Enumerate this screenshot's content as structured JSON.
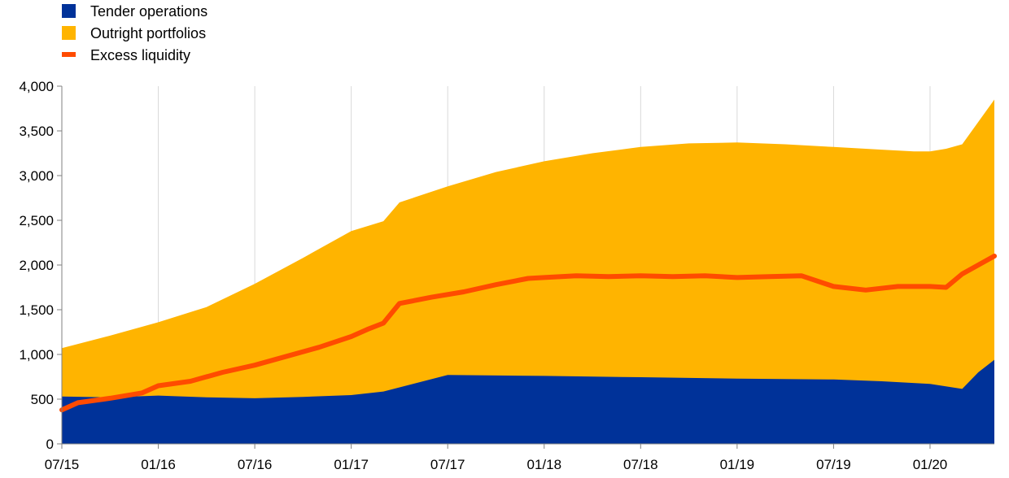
{
  "chart_data": {
    "type": "area",
    "title": "",
    "xlabel": "",
    "ylabel": "",
    "ylim": [
      0,
      4000
    ],
    "xlim": [
      "2015-07",
      "2020-05"
    ],
    "grid": {
      "vertical": true,
      "horizontal": false
    },
    "legend_position": "top-left",
    "y_ticks": [
      0,
      500,
      1000,
      1500,
      2000,
      2500,
      3000,
      3500,
      4000
    ],
    "y_tick_labels": [
      "0",
      "500",
      "1,000",
      "1,500",
      "2,000",
      "2,500",
      "3,000",
      "3,500",
      "4,000"
    ],
    "x_ticks": [
      "2015-07",
      "2016-01",
      "2016-07",
      "2017-01",
      "2017-07",
      "2018-01",
      "2018-07",
      "2019-01",
      "2019-07",
      "2020-01"
    ],
    "x_tick_labels": [
      "07/15",
      "01/16",
      "07/16",
      "01/17",
      "07/17",
      "01/18",
      "07/18",
      "01/19",
      "07/19",
      "01/20"
    ],
    "series": [
      {
        "name": "Tender operations",
        "kind": "stacked-area",
        "color": "#003299",
        "x": [
          "2015-07",
          "2015-10",
          "2016-01",
          "2016-04",
          "2016-07",
          "2016-10",
          "2017-01",
          "2017-03",
          "2017-07",
          "2018-01",
          "2018-07",
          "2019-01",
          "2019-07",
          "2019-10",
          "2020-01",
          "2020-03",
          "2020-04",
          "2020-05"
        ],
        "values": [
          530,
          520,
          540,
          520,
          510,
          525,
          545,
          585,
          770,
          760,
          745,
          730,
          720,
          700,
          670,
          615,
          800,
          940
        ]
      },
      {
        "name": "Outright portfolios",
        "kind": "stacked-area",
        "color": "#ffb400",
        "total_x": [
          "2015-07",
          "2015-10",
          "2016-01",
          "2016-04",
          "2016-07",
          "2016-10",
          "2017-01",
          "2017-03",
          "2017-04",
          "2017-07",
          "2017-10",
          "2018-01",
          "2018-04",
          "2018-07",
          "2018-10",
          "2019-01",
          "2019-04",
          "2019-07",
          "2019-10",
          "2019-12",
          "2020-01",
          "2020-02",
          "2020-03",
          "2020-04",
          "2020-05"
        ],
        "total_values": [
          1070,
          1210,
          1360,
          1530,
          1790,
          2080,
          2380,
          2490,
          2700,
          2880,
          3040,
          3160,
          3250,
          3320,
          3360,
          3370,
          3350,
          3320,
          3290,
          3270,
          3270,
          3300,
          3350,
          3600,
          3850
        ]
      },
      {
        "name": "Excess liquidity",
        "kind": "line",
        "color": "#ff4b00",
        "x": [
          "2015-07",
          "2015-08",
          "2015-10",
          "2015-12",
          "2016-01",
          "2016-03",
          "2016-05",
          "2016-07",
          "2016-09",
          "2016-11",
          "2017-01",
          "2017-02",
          "2017-03",
          "2017-04",
          "2017-06",
          "2017-08",
          "2017-10",
          "2017-12",
          "2018-01",
          "2018-03",
          "2018-05",
          "2018-07",
          "2018-09",
          "2018-11",
          "2019-01",
          "2019-03",
          "2019-05",
          "2019-07",
          "2019-09",
          "2019-11",
          "2020-01",
          "2020-02",
          "2020-03",
          "2020-04",
          "2020-05"
        ],
        "values": [
          380,
          460,
          510,
          570,
          650,
          700,
          800,
          880,
          980,
          1080,
          1200,
          1280,
          1350,
          1570,
          1640,
          1700,
          1780,
          1850,
          1860,
          1880,
          1870,
          1880,
          1870,
          1880,
          1860,
          1870,
          1880,
          1760,
          1720,
          1760,
          1760,
          1750,
          1900,
          2000,
          2100
        ]
      }
    ]
  },
  "legend": {
    "items": [
      {
        "label": "Tender operations",
        "color": "#003299",
        "marker": "square"
      },
      {
        "label": "Outright portfolios",
        "color": "#ffb400",
        "marker": "square"
      },
      {
        "label": "Excess liquidity",
        "color": "#ff4b00",
        "marker": "line"
      }
    ]
  }
}
